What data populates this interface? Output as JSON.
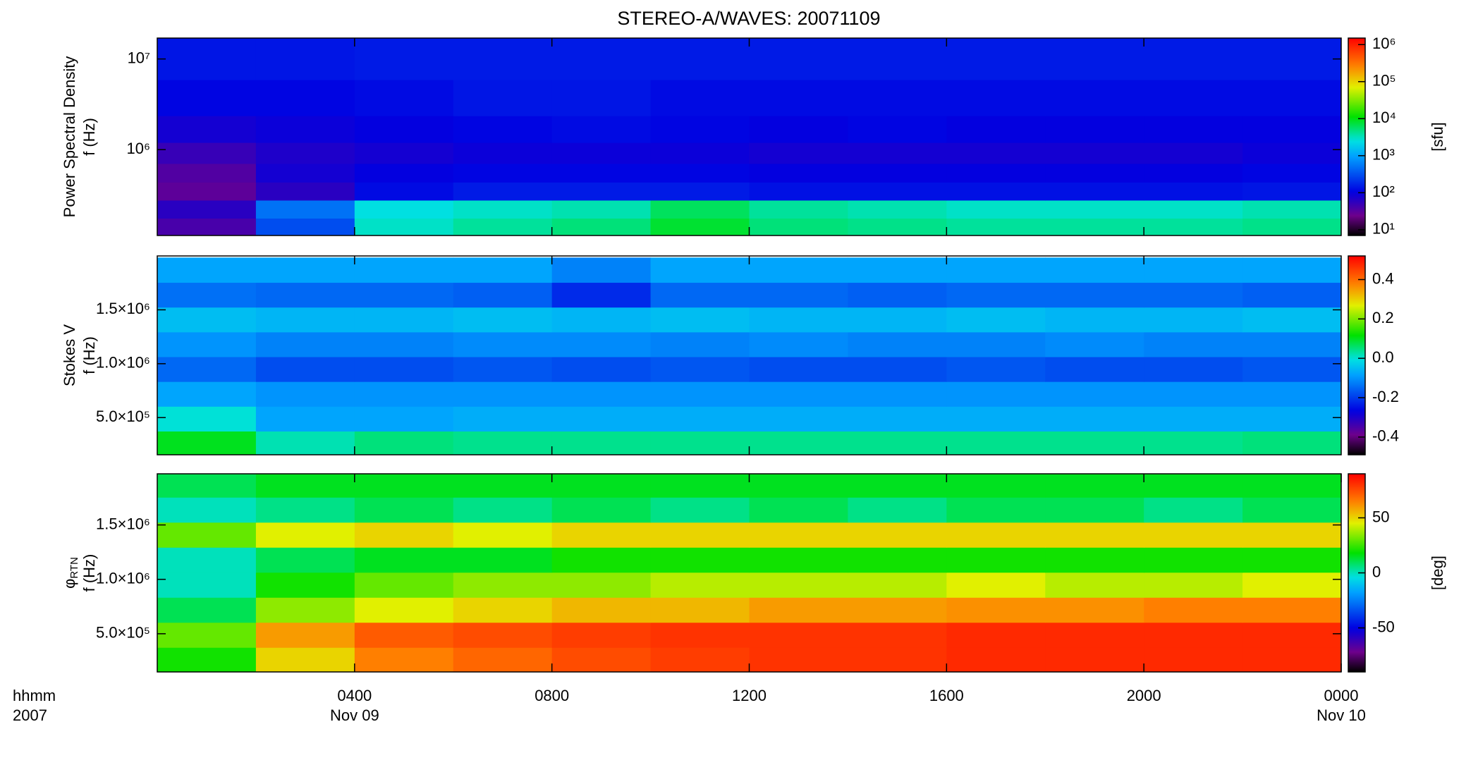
{
  "chart_data": [
    {
      "type": "heatmap",
      "title": "STEREO-A/WAVES: 20071109",
      "ylabel": [
        "Power Spectral Density",
        "f (Hz)"
      ],
      "xlim": [
        0,
        24
      ],
      "xticks": [
        4,
        8,
        12,
        16,
        20
      ],
      "ylog": true,
      "ylim": [
        113000,
        17000000
      ],
      "yticks": [
        {
          "value": 1000000,
          "label": "10⁶"
        },
        {
          "value": 10000000,
          "label": "10⁷"
        }
      ],
      "x": [
        1,
        3,
        5,
        7,
        9,
        11,
        13,
        15,
        17,
        19,
        21,
        23
      ],
      "y": [
        140000,
        220000,
        350000,
        550000,
        900000,
        1600000,
        3500000,
        10000000
      ],
      "values": [
        [
          40,
          300,
          3000,
          4000,
          5000,
          8000,
          5000,
          4500,
          4000,
          4000,
          4000,
          4500
        ],
        [
          60,
          500,
          2500,
          3000,
          3500,
          6000,
          4000,
          3500,
          3000,
          3000,
          3000,
          3500
        ],
        [
          30,
          60,
          120,
          150,
          150,
          150,
          130,
          130,
          130,
          130,
          130,
          140
        ],
        [
          35,
          80,
          100,
          110,
          110,
          110,
          100,
          100,
          100,
          100,
          100,
          110
        ],
        [
          50,
          70,
          80,
          90,
          90,
          90,
          80,
          80,
          80,
          80,
          80,
          90
        ],
        [
          80,
          90,
          100,
          110,
          120,
          110,
          100,
          110,
          100,
          100,
          100,
          100
        ],
        [
          110,
          110,
          120,
          140,
          140,
          120,
          120,
          120,
          120,
          120,
          120,
          120
        ],
        [
          140,
          140,
          150,
          150,
          150,
          150,
          150,
          150,
          150,
          150,
          150,
          150
        ]
      ],
      "zlog": true,
      "zlim": [
        7,
        1500000
      ],
      "zticks": [
        {
          "value": 10,
          "label": "10¹"
        },
        {
          "value": 100,
          "label": "10²"
        },
        {
          "value": 1000,
          "label": "10³"
        },
        {
          "value": 10000,
          "label": "10⁴"
        },
        {
          "value": 100000,
          "label": "10⁵"
        },
        {
          "value": 1000000,
          "label": "10⁶"
        }
      ],
      "zlabel": "[sfu]"
    },
    {
      "type": "heatmap",
      "ylabel": [
        "Stokes V",
        "f (Hz)"
      ],
      "xlim": [
        0,
        24
      ],
      "xticks": [
        4,
        8,
        12,
        16,
        20
      ],
      "ylog": false,
      "ylim": [
        155000,
        2000000
      ],
      "yticks": [
        {
          "value": 500000,
          "label": "5.0×10⁵"
        },
        {
          "value": 1000000,
          "label": "1.0×10⁶"
        },
        {
          "value": 1500000,
          "label": "1.5×10⁶"
        }
      ],
      "x": [
        1,
        3,
        5,
        7,
        9,
        11,
        13,
        15,
        17,
        19,
        21,
        23
      ],
      "y": [
        260000,
        490000,
        720000,
        950000,
        1180000,
        1410000,
        1640000,
        1870000
      ],
      "values": [
        [
          0.1,
          0.02,
          0.05,
          0.04,
          0.04,
          0.04,
          0.04,
          0.04,
          0.04,
          0.04,
          0.04,
          0.05
        ],
        [
          0.0,
          -0.08,
          -0.08,
          -0.07,
          -0.07,
          -0.07,
          -0.07,
          -0.07,
          -0.07,
          -0.07,
          -0.07,
          -0.07
        ],
        [
          -0.08,
          -0.1,
          -0.1,
          -0.1,
          -0.1,
          -0.1,
          -0.1,
          -0.1,
          -0.1,
          -0.1,
          -0.1,
          -0.1
        ],
        [
          -0.15,
          -0.18,
          -0.18,
          -0.17,
          -0.18,
          -0.17,
          -0.18,
          -0.18,
          -0.17,
          -0.18,
          -0.18,
          -0.17
        ],
        [
          -0.1,
          -0.12,
          -0.12,
          -0.11,
          -0.11,
          -0.12,
          -0.11,
          -0.12,
          -0.12,
          -0.11,
          -0.12,
          -0.12
        ],
        [
          -0.05,
          -0.06,
          -0.06,
          -0.05,
          -0.06,
          -0.05,
          -0.06,
          -0.06,
          -0.05,
          -0.06,
          -0.06,
          -0.05
        ],
        [
          -0.14,
          -0.15,
          -0.15,
          -0.16,
          -0.22,
          -0.15,
          -0.15,
          -0.16,
          -0.15,
          -0.15,
          -0.15,
          -0.16
        ],
        [
          -0.08,
          -0.08,
          -0.08,
          -0.08,
          -0.12,
          -0.08,
          -0.08,
          -0.08,
          -0.08,
          -0.08,
          -0.08,
          -0.08
        ]
      ],
      "zlog": false,
      "zlim": [
        -0.49,
        0.52
      ],
      "zticks": [
        -0.4,
        -0.2,
        {
          "value": 0,
          "label": "0.0"
        },
        0.2,
        0.4
      ]
    },
    {
      "type": "heatmap",
      "ylabel": [
        "φ",
        "f (Hz)"
      ],
      "ylabel_sub": "RTN",
      "xlim": [
        0,
        24
      ],
      "xticks": [
        {
          "value": 4,
          "label": "0400"
        },
        {
          "value": 8,
          "label": "0800"
        },
        {
          "value": 12,
          "label": "1200"
        },
        {
          "value": 16,
          "label": "1600"
        },
        {
          "value": 20,
          "label": "2000"
        },
        {
          "value": 24,
          "label": "0000"
        }
      ],
      "xtick_dates": [
        {
          "value": 4,
          "label": "Nov 09"
        },
        {
          "value": 24,
          "label": "Nov 10"
        }
      ],
      "xlabel": [
        "hhmm",
        "2007"
      ],
      "ylog": false,
      "ylim": [
        149000,
        1970000
      ],
      "yticks": [
        {
          "value": 500000,
          "label": "5.0×10⁵"
        },
        {
          "value": 1000000,
          "label": "1.0×10⁶"
        },
        {
          "value": 1500000,
          "label": "1.5×10⁶"
        }
      ],
      "x": [
        1,
        3,
        5,
        7,
        9,
        11,
        13,
        15,
        17,
        19,
        21,
        23
      ],
      "y": [
        260000,
        490000,
        720000,
        950000,
        1180000,
        1410000,
        1640000,
        1870000
      ],
      "values": [
        [
          20,
          50,
          65,
          70,
          75,
          78,
          80,
          80,
          82,
          82,
          82,
          82
        ],
        [
          30,
          60,
          72,
          75,
          78,
          80,
          80,
          80,
          82,
          82,
          82,
          82
        ],
        [
          10,
          35,
          45,
          50,
          55,
          55,
          60,
          60,
          62,
          62,
          65,
          65
        ],
        [
          0,
          20,
          30,
          35,
          35,
          40,
          40,
          40,
          45,
          40,
          40,
          45
        ],
        [
          0,
          10,
          15,
          15,
          20,
          20,
          20,
          20,
          20,
          20,
          20,
          20
        ],
        [
          30,
          45,
          50,
          45,
          50,
          50,
          50,
          50,
          50,
          50,
          50,
          50
        ],
        [
          0,
          5,
          10,
          5,
          10,
          5,
          10,
          5,
          10,
          10,
          5,
          10
        ],
        [
          10,
          15,
          15,
          15,
          15,
          15,
          15,
          15,
          15,
          15,
          15,
          15
        ]
      ],
      "zlog": false,
      "zlim": [
        -90,
        90
      ],
      "zticks": [
        -50,
        0,
        50
      ],
      "zlabel": "[deg]"
    }
  ]
}
